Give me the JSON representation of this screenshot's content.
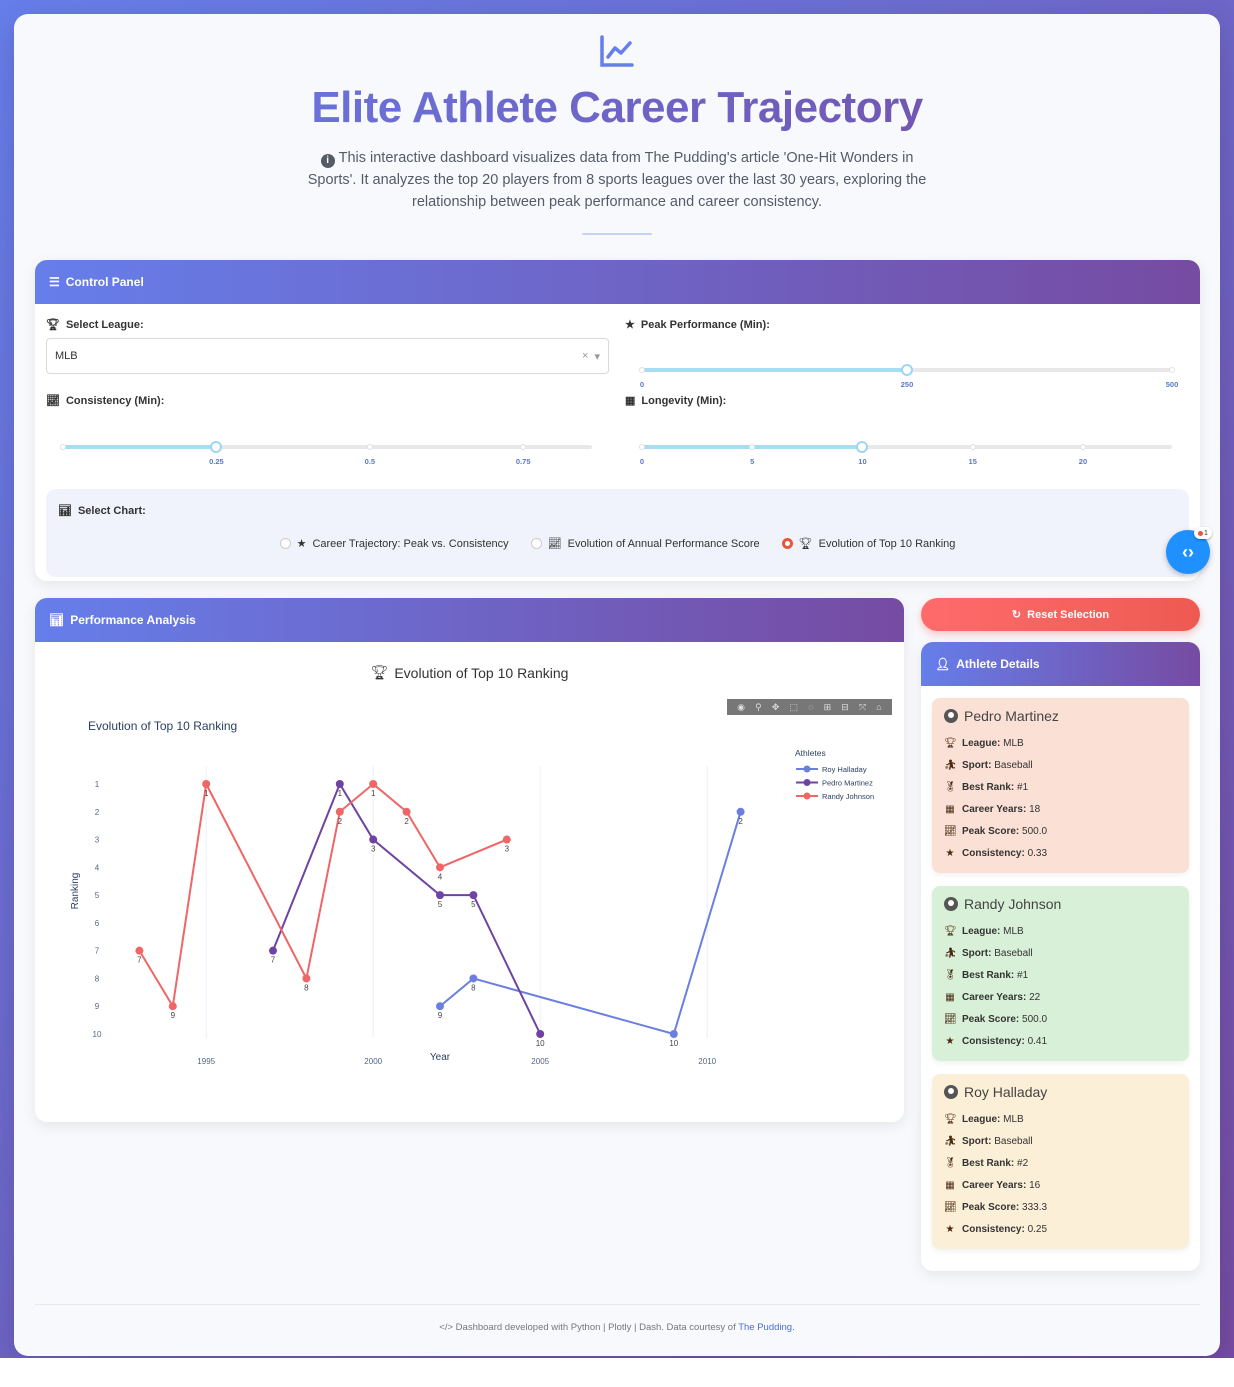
{
  "header": {
    "title": "Elite Athlete Career Trajectory",
    "intro": "This interactive dashboard visualizes data from The Pudding's article 'One-Hit Wonders in Sports'. It analyzes the top 20 players from 8 sports leagues over the last 30 years, exploring the relationship between peak performance and career consistency."
  },
  "control_panel": {
    "title": "Control Panel",
    "league_label": "Select League:",
    "league_value": "MLB",
    "peak_label": "Peak Performance (Min):",
    "peak_value": 250,
    "peak_marks": [
      "0",
      "250",
      "500"
    ],
    "consistency_label": "Consistency (Min):",
    "consistency_value": 0.25,
    "consistency_marks": [
      "0.25",
      "0.5",
      "0.75"
    ],
    "longevity_label": "Longevity (Min):",
    "longevity_value": 10,
    "longevity_marks": [
      "0",
      "5",
      "10",
      "15",
      "20"
    ],
    "chart_select_label": "Select Chart:",
    "chart_options": [
      "Career Trajectory: Peak vs. Consistency",
      "Evolution of Annual Performance Score",
      "Evolution of Top 10 Ranking"
    ],
    "selected_chart": "Evolution of Top 10 Ranking",
    "badge_count": "1"
  },
  "performance": {
    "title": "Performance Analysis",
    "chart_heading": "Evolution of Top 10 Ranking"
  },
  "chart_data": {
    "type": "line",
    "title": "Evolution of Top 10 Ranking",
    "xlabel": "Year",
    "ylabel": "Ranking",
    "x_ticks": [
      "1995",
      "2000",
      "2005",
      "2010"
    ],
    "y_ticks": [
      "1",
      "2",
      "3",
      "4",
      "5",
      "6",
      "7",
      "8",
      "9",
      "10"
    ],
    "y_reversed": true,
    "xlim": [
      1992,
      2012
    ],
    "ylim": [
      10,
      1
    ],
    "legend_title": "Athletes",
    "legend_position": "top-right",
    "series": [
      {
        "name": "Roy Halladay",
        "color": "#6b7fe0",
        "points": [
          [
            2002,
            9
          ],
          [
            2003,
            8
          ],
          [
            2009,
            10
          ],
          [
            2011,
            2
          ]
        ]
      },
      {
        "name": "Pedro Martinez",
        "color": "#6e43a3",
        "points": [
          [
            1997,
            7
          ],
          [
            1999,
            1
          ],
          [
            2000,
            3
          ],
          [
            2002,
            5
          ],
          [
            2003,
            5
          ],
          [
            2005,
            10
          ]
        ]
      },
      {
        "name": "Randy Johnson",
        "color": "#ee6666",
        "points": [
          [
            1993,
            7
          ],
          [
            1994,
            9
          ],
          [
            1995,
            1
          ],
          [
            1998,
            8
          ],
          [
            1999,
            2
          ],
          [
            2000,
            1
          ],
          [
            2001,
            2
          ],
          [
            2002,
            4
          ],
          [
            2004,
            3
          ]
        ]
      }
    ]
  },
  "reset_label": "Reset Selection",
  "details": {
    "title": "Athlete Details",
    "athletes": [
      {
        "name": "Pedro Martinez",
        "bg": "#fbe0d6",
        "league": "MLB",
        "sport": "Baseball",
        "best_rank": "#1",
        "career_years": "18",
        "peak_score": "500.0",
        "consistency": "0.33"
      },
      {
        "name": "Randy Johnson",
        "bg": "#d8f0d8",
        "league": "MLB",
        "sport": "Baseball",
        "best_rank": "#1",
        "career_years": "22",
        "peak_score": "500.0",
        "consistency": "0.41"
      },
      {
        "name": "Roy Halladay",
        "bg": "#fcefd8",
        "league": "MLB",
        "sport": "Baseball",
        "best_rank": "#2",
        "career_years": "16",
        "peak_score": "333.3",
        "consistency": "0.25"
      }
    ],
    "labels": {
      "league": "League:",
      "sport": "Sport:",
      "best_rank": "Best Rank:",
      "career_years": "Career Years:",
      "peak_score": "Peak Score:",
      "consistency": "Consistency:"
    }
  },
  "footer": {
    "text": "Dashboard developed with Python | Plotly | Dash. Data courtesy of",
    "link": "The Pudding."
  }
}
